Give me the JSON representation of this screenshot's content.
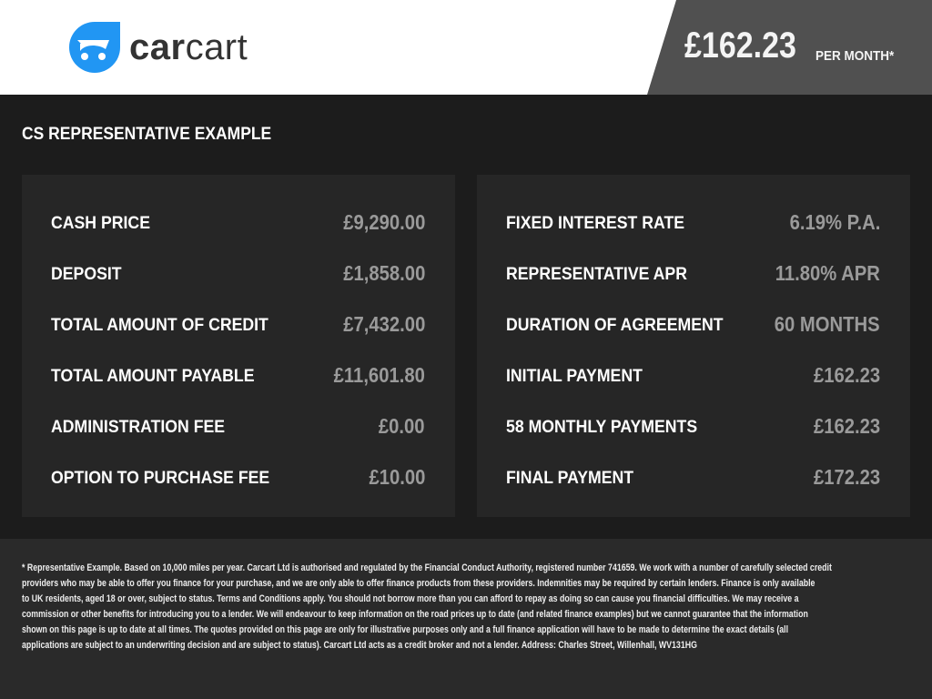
{
  "header": {
    "brand_bold": "car",
    "brand_light": "cart",
    "brand_color": "#2196f3",
    "price": "£162.23",
    "per_month": "PER MONTH*"
  },
  "title": "CS REPRESENTATIVE EXAMPLE",
  "left": [
    {
      "label": "CASH PRICE",
      "value": "£9,290.00"
    },
    {
      "label": "DEPOSIT",
      "value": "£1,858.00"
    },
    {
      "label": "TOTAL AMOUNT OF CREDIT",
      "value": "£7,432.00"
    },
    {
      "label": "TOTAL AMOUNT PAYABLE",
      "value": "£11,601.80"
    },
    {
      "label": "ADMINISTRATION FEE",
      "value": "£0.00"
    },
    {
      "label": "OPTION TO PURCHASE FEE",
      "value": "£10.00"
    }
  ],
  "right": [
    {
      "label": "FIXED INTEREST RATE",
      "value": "6.19% P.A."
    },
    {
      "label": "REPRESENTATIVE APR",
      "value": "11.80% APR"
    },
    {
      "label": "DURATION OF AGREEMENT",
      "value": "60 MONTHS"
    },
    {
      "label": "INITIAL PAYMENT",
      "value": "£162.23"
    },
    {
      "label": "58 MONTHLY PAYMENTS",
      "value": "£162.23"
    },
    {
      "label": "FINAL PAYMENT",
      "value": "£172.23"
    }
  ],
  "disclaimer": [
    "* Representative Example. Based on 10,000 miles per year. Carcart Ltd is authorised and regulated by the Financial Conduct Authority, registered number 741659. We work with a number of carefully selected credit",
    "providers who may be able to offer you finance for your purchase, and we are only able to offer finance products from these providers. Indemnities may be required by certain lenders. Finance is only available",
    "to UK residents, aged 18 or over, subject to status. Terms and Conditions apply. You should not borrow more than you can afford to repay as doing so can cause you financial difficulties. We may receive a",
    "commission or other benefits for introducing you to a lender. We will endeavour to keep information on the road prices up to date (and related finance examples) but we cannot guarantee that the information",
    "shown on this page is up to date at all times. The quotes provided on this page are only for illustrative purposes only and a full finance application will have to be made to determine the exact details (all",
    "applications are subject to an underwriting decision and are subject to status). Carcart Ltd acts as a credit broker and not a lender. Address: Charles Street, Willenhall, WV131HG"
  ]
}
